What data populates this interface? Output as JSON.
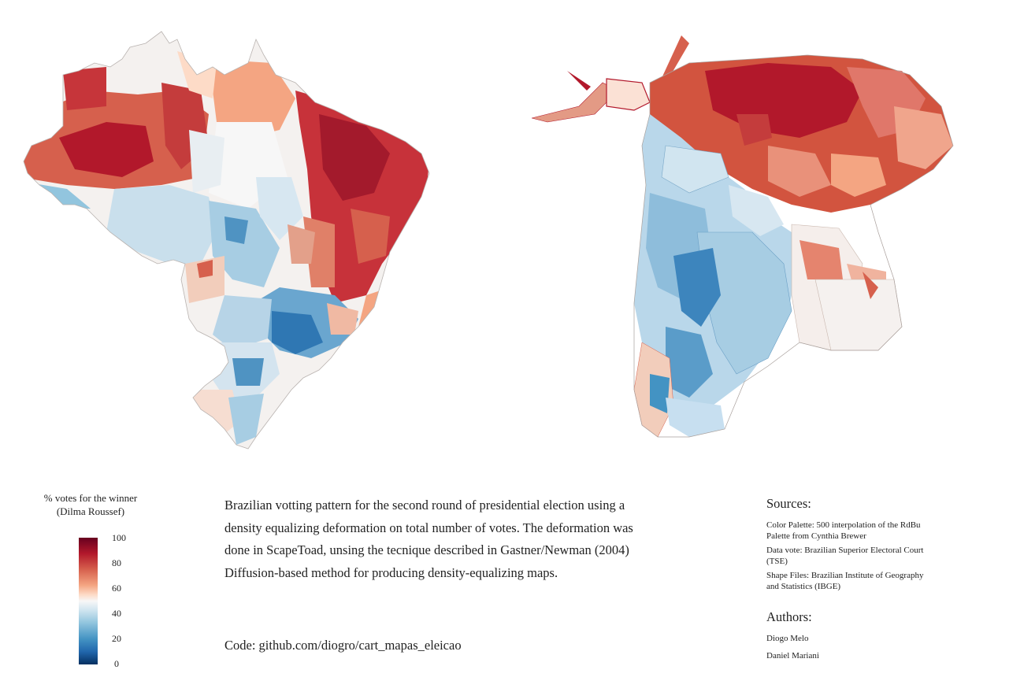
{
  "legend": {
    "title_line1": "% votes for the winner",
    "title_line2": "(Dilma Roussef)",
    "ticks": [
      "100",
      "80",
      "60",
      "40",
      "20",
      "0"
    ],
    "min": 0,
    "max": 100,
    "palette": [
      "#67001f",
      "#b2182b",
      "#d6604d",
      "#f4a582",
      "#fddbc7",
      "#f7f7f7",
      "#d1e5f0",
      "#92c5de",
      "#4393c3",
      "#2166ac",
      "#053061"
    ]
  },
  "description": "Brazilian votting pattern for the second round of presidential election using a density equalizing deformation on total number of votes. The deformation was done in ScapeToad, unsing the tecnique described in Gastner/Newman (2004) Diffusion-based method for producing density-equalizing maps.",
  "code": "Code: github.com/diogro/cart_mapas_eleicao",
  "sources": {
    "heading": "Sources:",
    "items": [
      "Color Palette: 500 interpolation of the RdBu Palette from Cynthia Brewer",
      "Data vote: Brazilian Superior Electoral Court (TSE)",
      "Shape Files: Brazilian Institute of Geography and Statistics (IBGE)"
    ]
  },
  "authors": {
    "heading": "Authors:",
    "names": [
      "Diogo Melo",
      "Daniel Mariani"
    ]
  }
}
